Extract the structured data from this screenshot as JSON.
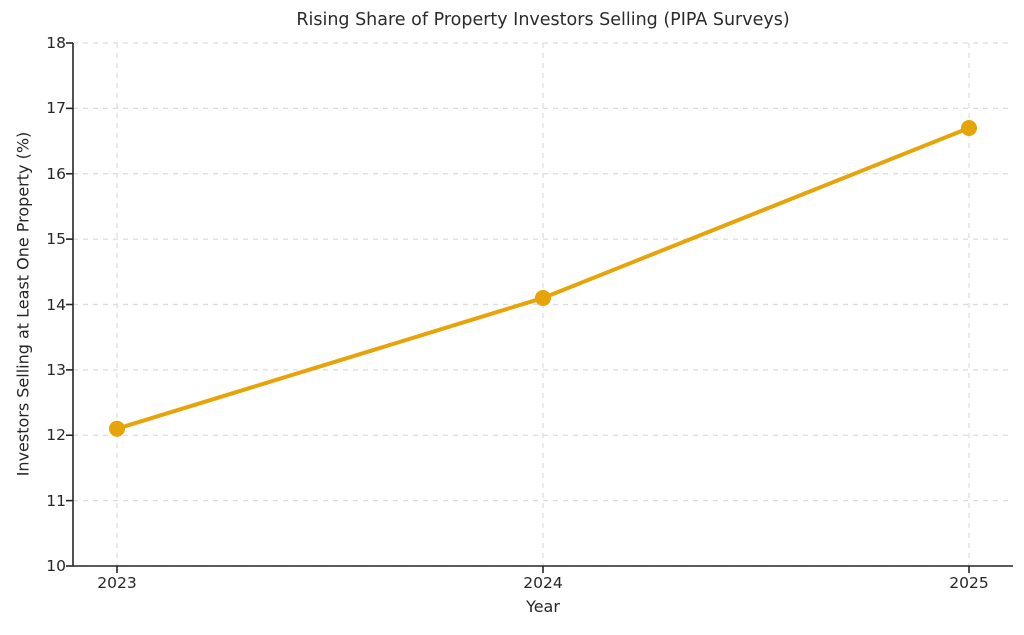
{
  "chart_data": {
    "type": "line",
    "title": "Rising Share of Property Investors Selling (PIPA Surveys)",
    "xlabel": "Year",
    "ylabel": "Investors Selling at Least One Property (%)",
    "categories": [
      "2023",
      "2024",
      "2025"
    ],
    "values": [
      12.1,
      14.1,
      16.7
    ],
    "ylim": [
      10,
      18
    ],
    "yticks": [
      10,
      11,
      12,
      13,
      14,
      15,
      16,
      17,
      18
    ],
    "grid": true,
    "grid_style": "dashed",
    "legend": "none",
    "line_color": "#E6A409",
    "marker": "circle"
  }
}
